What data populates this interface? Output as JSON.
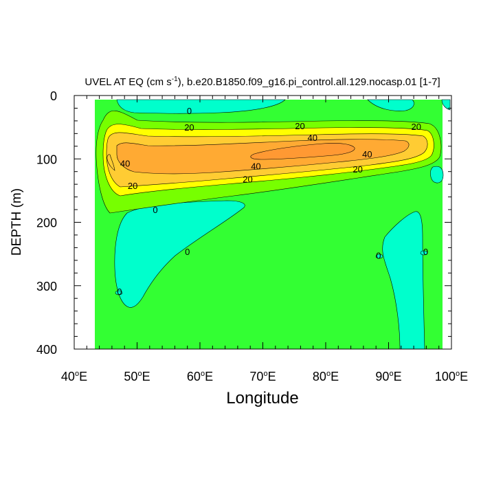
{
  "chart_data": {
    "type": "contour",
    "title": {
      "main": "UVEL AT EQ (cm s",
      "units_exp": "-1",
      "rest": "), b.e20.B1850.f09_g16.pi_control.all.129.nocasp.01 [1-7]"
    },
    "xlabel": "Longitude",
    "ylabel": "DEPTH (m)",
    "xlim": [
      40,
      100
    ],
    "ylim": [
      0,
      400
    ],
    "y_reversed": true,
    "x_ticks": [
      {
        "value": 40,
        "num": "40",
        "deg": "o",
        "hem": "E"
      },
      {
        "value": 50,
        "num": "50",
        "deg": "o",
        "hem": "E"
      },
      {
        "value": 60,
        "num": "60",
        "deg": "o",
        "hem": "E"
      },
      {
        "value": 70,
        "num": "70",
        "deg": "o",
        "hem": "E"
      },
      {
        "value": 80,
        "num": "80",
        "deg": "o",
        "hem": "E"
      },
      {
        "value": 90,
        "num": "90",
        "deg": "o",
        "hem": "E"
      },
      {
        "value": 100,
        "num": "100",
        "deg": "o",
        "hem": "E"
      }
    ],
    "y_ticks": [
      {
        "value": 0,
        "label": "0"
      },
      {
        "value": 100,
        "label": "100"
      },
      {
        "value": 200,
        "label": "200"
      },
      {
        "value": 300,
        "label": "300"
      },
      {
        "value": 400,
        "label": "400"
      }
    ],
    "colors": {
      "negative": "#00ffcc",
      "zero_to_10": "#33ff33",
      "10_to_20": "#77ff00",
      "20_to_30": "#ffff00",
      "30_to_40": "#ffcc33",
      "40_to_50": "#ffaa33",
      "50_plus": "#ff9933"
    },
    "contour_labels": [
      {
        "x": 58.3,
        "y": 25,
        "text": "0"
      },
      {
        "x": 58.3,
        "y": 51,
        "text": "20"
      },
      {
        "x": 75.9,
        "y": 49,
        "text": "20"
      },
      {
        "x": 94.4,
        "y": 50,
        "text": "20"
      },
      {
        "x": 77.9,
        "y": 67,
        "text": "40"
      },
      {
        "x": 86.6,
        "y": 93,
        "text": "40"
      },
      {
        "x": 48.1,
        "y": 108,
        "text": "40"
      },
      {
        "x": 68.9,
        "y": 112,
        "text": "40"
      },
      {
        "x": 85.1,
        "y": 117,
        "text": "20"
      },
      {
        "x": 67.6,
        "y": 133,
        "text": "20"
      },
      {
        "x": 49.3,
        "y": 143,
        "text": "20"
      },
      {
        "x": 52.9,
        "y": 181,
        "text": "0"
      },
      {
        "x": 58.0,
        "y": 247,
        "text": "0"
      },
      {
        "x": 88.4,
        "y": 253,
        "text": "0"
      },
      {
        "x": 95.9,
        "y": 247,
        "text": "0"
      },
      {
        "x": 47.2,
        "y": 310,
        "text": "0"
      }
    ]
  }
}
